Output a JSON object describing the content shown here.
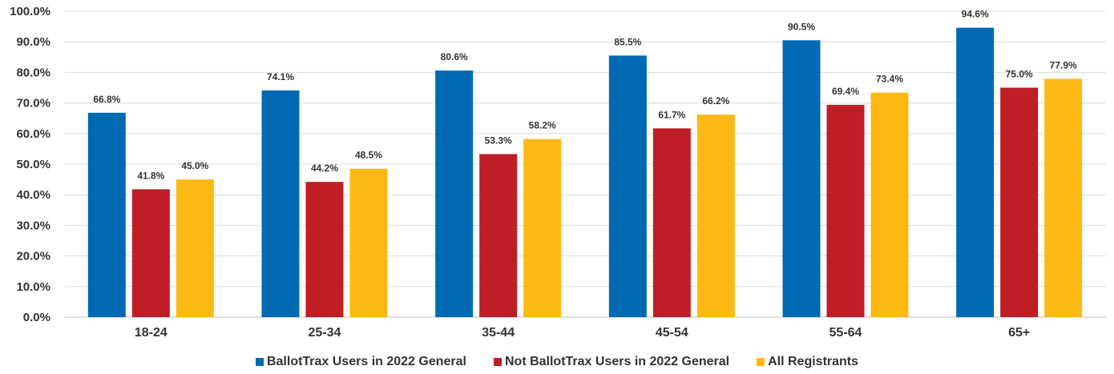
{
  "chart_data": {
    "type": "bar",
    "title": "",
    "xlabel": "",
    "ylabel": "",
    "categories": [
      "18-24",
      "25-34",
      "35-44",
      "45-54",
      "55-64",
      "65+"
    ],
    "series": [
      {
        "name": "BallotTrax Users in 2022 General",
        "color": "#0069b4",
        "values": [
          66.8,
          74.1,
          80.6,
          85.5,
          90.5,
          94.6
        ],
        "labels": [
          "66.8%",
          "74.1%",
          "80.6%",
          "85.5%",
          "90.5%",
          "94.6%"
        ]
      },
      {
        "name": "Not BallotTrax Users in 2022 General",
        "color": "#be1e24",
        "values": [
          41.8,
          44.2,
          53.3,
          61.7,
          69.4,
          75.0
        ],
        "labels": [
          "41.8%",
          "44.2%",
          "53.3%",
          "61.7%",
          "69.4%",
          "75.0%"
        ]
      },
      {
        "name": "All Registrants",
        "color": "#fdb913",
        "values": [
          45.0,
          48.5,
          58.2,
          66.2,
          73.4,
          77.9
        ],
        "labels": [
          "45.0%",
          "48.5%",
          "58.2%",
          "66.2%",
          "73.4%",
          "77.9%"
        ]
      }
    ],
    "ylim": [
      0,
      100
    ],
    "yticks": [
      0,
      10,
      20,
      30,
      40,
      50,
      60,
      70,
      80,
      90,
      100
    ],
    "ytick_labels": [
      "0.0%",
      "10.0%",
      "20.0%",
      "30.0%",
      "40.0%",
      "50.0%",
      "60.0%",
      "70.0%",
      "80.0%",
      "90.0%",
      "100.0%"
    ],
    "grid": true,
    "legend_position": "bottom"
  }
}
